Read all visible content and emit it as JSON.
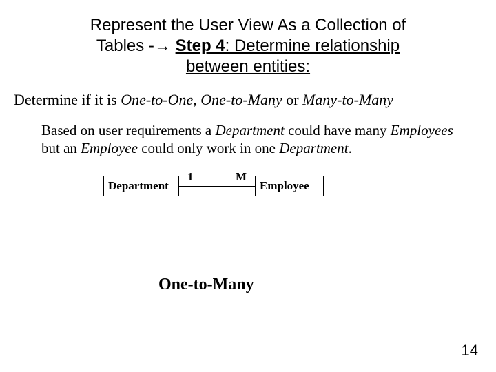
{
  "title": {
    "line1_pre": "Represent the User View As a Collection of",
    "line2_pre": "Tables -",
    "arrow": "→",
    "step_bold": "Step 4",
    "step_rest": ": Determine relationship",
    "line3": "between entities:"
  },
  "determine": {
    "pre": "Determine if it is ",
    "i1": "One-to-One, One-to-Many",
    "mid": " or ",
    "i2": "Many-to-Many"
  },
  "body": {
    "t1": "Based on user requirements a ",
    "e1": "Department",
    "t2": " could have many ",
    "e2": "Employees",
    "t3": " but an ",
    "e3": "Employee",
    "t4": " could only work in one ",
    "e4": "Department",
    "t5": "."
  },
  "diagram": {
    "left_entity": "Department",
    "right_entity": "Employee",
    "left_card": "1",
    "right_card": "M",
    "relationship_name": "One-to-Many",
    "styling": {
      "entity_border_color": "#000000",
      "entity_bg": "#ffffff",
      "line_color": "#000000",
      "font_family": "Times New Roman",
      "font_weight": "bold",
      "entity_font_size_pt": 13,
      "relationship_font_size_pt": 18
    }
  },
  "page_number": "14",
  "colors": {
    "background": "#ffffff",
    "text": "#000000"
  }
}
